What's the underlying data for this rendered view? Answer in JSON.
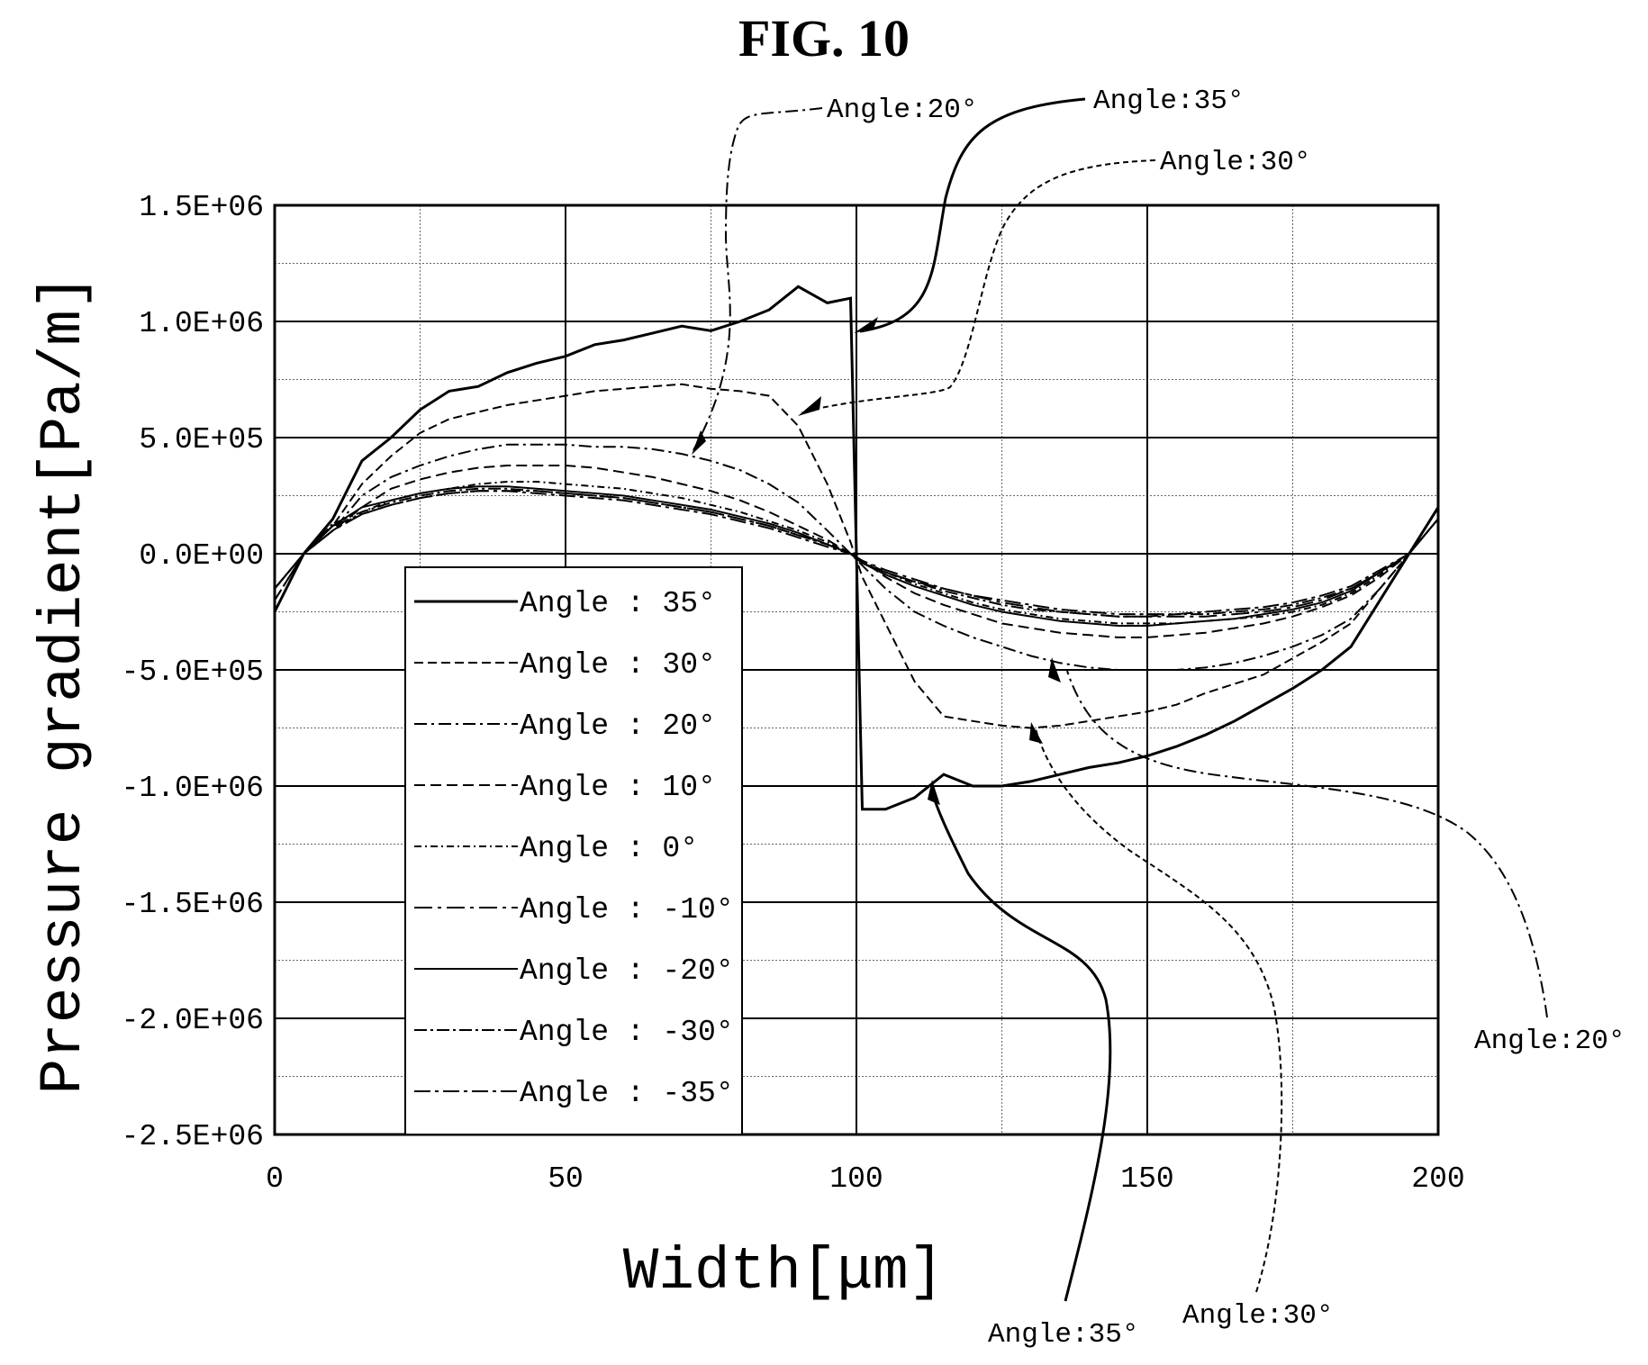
{
  "figure_title": "FIG. 10",
  "chart_data": {
    "type": "line",
    "xlabel": "Width[μm]",
    "ylabel": "Pressure gradient[Pa/m]",
    "xlim": [
      0,
      200
    ],
    "ylim": [
      -2500000,
      1500000
    ],
    "x_ticks": [
      "0",
      "50",
      "100",
      "150",
      "200"
    ],
    "y_ticks": [
      "1.5E+06",
      "1.0E+06",
      "5.0E+05",
      "0.0E+00",
      "-5.0E+05",
      "-1.0E+06",
      "-1.5E+06",
      "-2.0E+06",
      "-2.5E+06"
    ],
    "grid": true,
    "legend_position": "lower-left",
    "x": [
      0,
      5,
      10,
      15,
      20,
      25,
      30,
      35,
      40,
      45,
      50,
      55,
      60,
      65,
      70,
      75,
      80,
      85,
      90,
      95,
      99,
      101,
      105,
      110,
      115,
      120,
      125,
      130,
      135,
      140,
      145,
      150,
      155,
      160,
      165,
      170,
      175,
      180,
      185,
      190,
      195,
      200
    ],
    "series": [
      {
        "name": "Angle : 35°",
        "dash": "solid",
        "values": [
          -250000,
          0,
          150000,
          400000,
          500000,
          620000,
          700000,
          720000,
          780000,
          820000,
          850000,
          900000,
          920000,
          950000,
          980000,
          960000,
          1000000,
          1050000,
          1150000,
          1080000,
          1100000,
          -1100000,
          -1100000,
          -1050000,
          -950000,
          -1000000,
          -1000000,
          -980000,
          -950000,
          -920000,
          -900000,
          -870000,
          -830000,
          -780000,
          -720000,
          -650000,
          -580000,
          -500000,
          -400000,
          -200000,
          0,
          200000
        ]
      },
      {
        "name": "Angle : 30°",
        "dash": "10,5",
        "values": [
          -250000,
          0,
          120000,
          300000,
          420000,
          520000,
          580000,
          610000,
          640000,
          660000,
          680000,
          700000,
          710000,
          720000,
          730000,
          710000,
          700000,
          680000,
          550000,
          300000,
          50000,
          -100000,
          -300000,
          -550000,
          -700000,
          -720000,
          -740000,
          -750000,
          -740000,
          -720000,
          -700000,
          -680000,
          -650000,
          -600000,
          -560000,
          -520000,
          -450000,
          -380000,
          -300000,
          -150000,
          0,
          200000
        ]
      },
      {
        "name": "Angle : 20°",
        "dash": "14,5,3,5",
        "values": [
          -200000,
          0,
          100000,
          250000,
          330000,
          380000,
          420000,
          450000,
          470000,
          470000,
          470000,
          460000,
          460000,
          450000,
          430000,
          400000,
          360000,
          300000,
          220000,
          100000,
          0,
          -50000,
          -150000,
          -250000,
          -310000,
          -360000,
          -400000,
          -440000,
          -470000,
          -490000,
          -500000,
          -500000,
          -500000,
          -490000,
          -470000,
          -440000,
          -400000,
          -350000,
          -280000,
          -150000,
          0,
          200000
        ]
      },
      {
        "name": "Angle : 10°",
        "dash": "12,6",
        "values": [
          -200000,
          0,
          100000,
          200000,
          280000,
          320000,
          350000,
          370000,
          380000,
          380000,
          380000,
          370000,
          350000,
          330000,
          300000,
          270000,
          230000,
          180000,
          120000,
          60000,
          0,
          -30000,
          -100000,
          -170000,
          -220000,
          -260000,
          -300000,
          -320000,
          -340000,
          -350000,
          -360000,
          -360000,
          -350000,
          -340000,
          -320000,
          -300000,
          -270000,
          -230000,
          -180000,
          -100000,
          0,
          150000
        ]
      },
      {
        "name": "Angle : 0°",
        "dash": "8,4,2,4",
        "values": [
          -150000,
          0,
          100000,
          180000,
          230000,
          260000,
          280000,
          300000,
          310000,
          310000,
          300000,
          290000,
          280000,
          260000,
          240000,
          210000,
          180000,
          140000,
          100000,
          50000,
          0,
          -30000,
          -80000,
          -130000,
          -170000,
          -210000,
          -240000,
          -260000,
          -280000,
          -290000,
          -300000,
          -300000,
          -300000,
          -290000,
          -280000,
          -270000,
          -250000,
          -220000,
          -170000,
          -90000,
          0,
          150000
        ]
      },
      {
        "name": "Angle : -10°",
        "dash": "20,6,4,6",
        "values": [
          -150000,
          0,
          100000,
          170000,
          210000,
          240000,
          260000,
          270000,
          270000,
          270000,
          260000,
          250000,
          240000,
          220000,
          200000,
          180000,
          150000,
          120000,
          80000,
          40000,
          0,
          -30000,
          -70000,
          -110000,
          -150000,
          -180000,
          -210000,
          -230000,
          -250000,
          -260000,
          -270000,
          -270000,
          -270000,
          -270000,
          -260000,
          -250000,
          -230000,
          -200000,
          -150000,
          -80000,
          0,
          150000
        ]
      },
      {
        "name": "Angle : -20°",
        "dash": "solid",
        "values": [
          -150000,
          0,
          120000,
          200000,
          230000,
          260000,
          280000,
          290000,
          290000,
          280000,
          270000,
          260000,
          250000,
          230000,
          210000,
          190000,
          160000,
          130000,
          90000,
          40000,
          0,
          -40000,
          -90000,
          -140000,
          -180000,
          -220000,
          -250000,
          -270000,
          -290000,
          -300000,
          -310000,
          -310000,
          -300000,
          -290000,
          -280000,
          -260000,
          -240000,
          -210000,
          -160000,
          -80000,
          0,
          150000
        ]
      },
      {
        "name": "Angle : -30°",
        "dash": "14,4,3,4",
        "values": [
          -150000,
          0,
          130000,
          180000,
          220000,
          250000,
          270000,
          280000,
          280000,
          270000,
          260000,
          250000,
          240000,
          220000,
          200000,
          180000,
          150000,
          120000,
          80000,
          40000,
          0,
          -40000,
          -80000,
          -120000,
          -160000,
          -190000,
          -220000,
          -240000,
          -250000,
          -260000,
          -270000,
          -270000,
          -260000,
          -260000,
          -250000,
          -240000,
          -220000,
          -190000,
          -150000,
          -80000,
          0,
          150000
        ]
      },
      {
        "name": "Angle : -35°",
        "dash": "18,5,4,5",
        "values": [
          -150000,
          0,
          120000,
          170000,
          210000,
          240000,
          260000,
          270000,
          270000,
          260000,
          250000,
          240000,
          230000,
          210000,
          190000,
          170000,
          140000,
          110000,
          70000,
          30000,
          0,
          -40000,
          -80000,
          -120000,
          -150000,
          -180000,
          -200000,
          -220000,
          -240000,
          -250000,
          -260000,
          -260000,
          -260000,
          -250000,
          -240000,
          -230000,
          -210000,
          -180000,
          -140000,
          -70000,
          0,
          150000
        ]
      }
    ],
    "annotations": [
      {
        "text": "Angle:20°",
        "side": "top"
      },
      {
        "text": "Angle:35°",
        "side": "top"
      },
      {
        "text": "Angle:30°",
        "side": "top"
      },
      {
        "text": "Angle:20°",
        "side": "right"
      },
      {
        "text": "Angle:35°",
        "side": "bottom"
      },
      {
        "text": "Angle:30°",
        "side": "bottom"
      }
    ]
  }
}
